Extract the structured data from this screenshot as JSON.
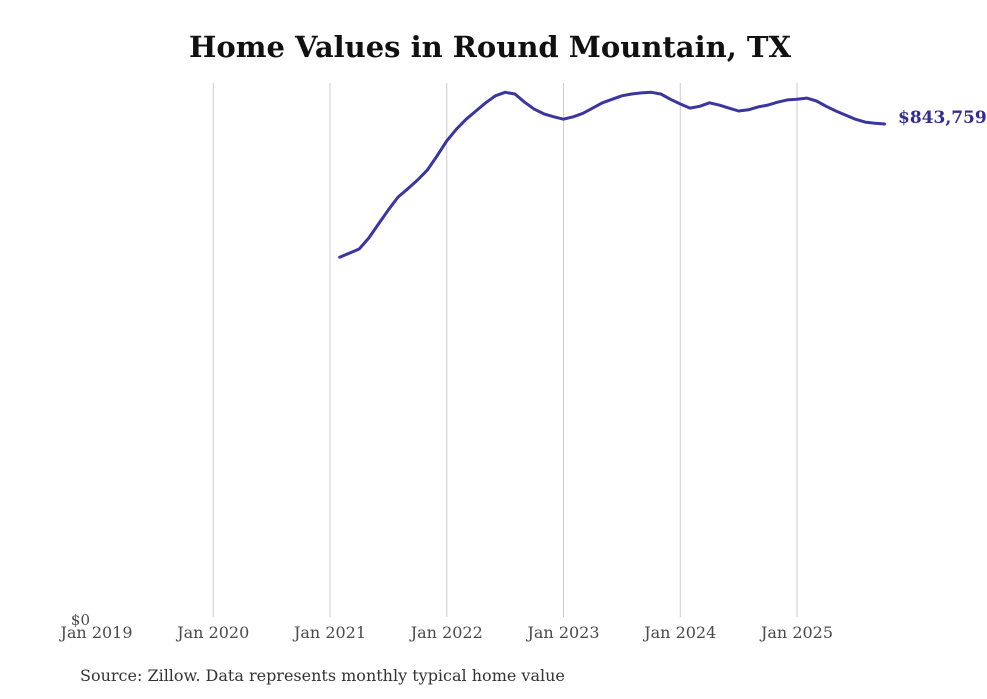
{
  "chart": {
    "title": "Home Values in Round Mountain, TX",
    "latest_value_label": "$843,759",
    "y_zero_label": "$0",
    "source_note": "Source: Zillow. Data represents monthly typical home value",
    "line_color": "#3b35a0",
    "value_label_color": "#322c90",
    "gridline_color": "#cccccc"
  },
  "chart_data": {
    "type": "line",
    "title": "Home Values in Round Mountain, TX",
    "xlabel": "",
    "ylabel": "",
    "x_tick_labels": [
      "Jan 2019",
      "Jan 2020",
      "Jan 2021",
      "Jan 2022",
      "Jan 2023",
      "Jan 2024",
      "Jan 2025"
    ],
    "y_tick_labels": [
      "$0"
    ],
    "ylim": [
      0,
      913000
    ],
    "grid": "vertical-gridlines-only",
    "legend": "none",
    "final_value": 843759,
    "annotation": "$843,759",
    "source": "Source: Zillow. Data represents monthly typical home value",
    "series": [
      {
        "name": "Typical home value",
        "start_month": "Feb 2021",
        "end_month": "Oct 2025",
        "x": [
          "Feb 2021",
          "Mar 2021",
          "Apr 2021",
          "May 2021",
          "Jun 2021",
          "Jul 2021",
          "Aug 2021",
          "Sep 2021",
          "Oct 2021",
          "Nov 2021",
          "Dec 2021",
          "Jan 2022",
          "Feb 2022",
          "Mar 2022",
          "Apr 2022",
          "May 2022",
          "Jun 2022",
          "Jul 2022",
          "Aug 2022",
          "Sep 2022",
          "Oct 2022",
          "Nov 2022",
          "Dec 2022",
          "Jan 2023",
          "Feb 2023",
          "Mar 2023",
          "Apr 2023",
          "May 2023",
          "Jun 2023",
          "Jul 2023",
          "Aug 2023",
          "Sep 2023",
          "Oct 2023",
          "Nov 2023",
          "Dec 2023",
          "Jan 2024",
          "Feb 2024",
          "Mar 2024",
          "Apr 2024",
          "May 2024",
          "Jun 2024",
          "Jul 2024",
          "Aug 2024",
          "Sep 2024",
          "Oct 2024",
          "Nov 2024",
          "Dec 2024",
          "Jan 2025",
          "Feb 2025",
          "Mar 2025",
          "Apr 2025",
          "May 2025",
          "Jun 2025",
          "Jul 2025",
          "Aug 2025",
          "Sep 2025",
          "Oct 2025"
        ],
        "values": [
          616000,
          623000,
          630000,
          649000,
          673000,
          697000,
          719000,
          733000,
          748000,
          765000,
          789000,
          815000,
          835000,
          852000,
          866000,
          880000,
          892000,
          898000,
          895000,
          881000,
          869000,
          861000,
          856000,
          852000,
          856000,
          862000,
          871000,
          880000,
          886000,
          892000,
          895000,
          897000,
          898000,
          895000,
          886000,
          878000,
          871000,
          874000,
          880000,
          876000,
          871000,
          866000,
          868000,
          873000,
          876000,
          881000,
          885000,
          886000,
          888000,
          883000,
          874000,
          866000,
          859000,
          852000,
          847000,
          845000,
          843759
        ]
      }
    ]
  }
}
